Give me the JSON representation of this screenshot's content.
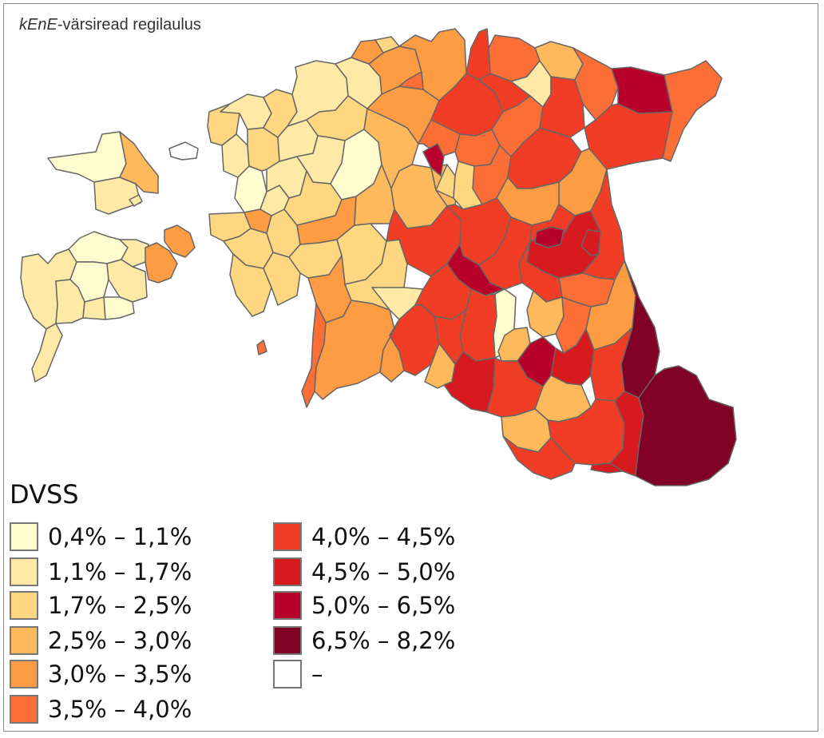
{
  "map": {
    "title_italic": "kEnE",
    "title_rest": "-värsiread regilaulus"
  },
  "legend": {
    "title": "DVSS",
    "bins": [
      {
        "label": "0,4% – 1,1%",
        "color": "#fffcd0"
      },
      {
        "label": "1,1% – 1,7%",
        "color": "#fee9a6"
      },
      {
        "label": "1,7% – 2,5%",
        "color": "#fed780"
      },
      {
        "label": "2,5% – 3,0%",
        "color": "#feb95c"
      },
      {
        "label": "3,0% – 3,5%",
        "color": "#fd9c42"
      },
      {
        "label": "3,5% – 4,0%",
        "color": "#fd6e37"
      },
      {
        "label": "4,0% – 4,5%",
        "color": "#f23d26"
      },
      {
        "label": "4,5% – 5,0%",
        "color": "#d71a1f"
      },
      {
        "label": "5,0% – 6,5%",
        "color": "#b7002a"
      },
      {
        "label": "6,5% – 8,2%",
        "color": "#800026"
      },
      {
        "label": "–",
        "color": "#ffffff"
      }
    ]
  }
}
